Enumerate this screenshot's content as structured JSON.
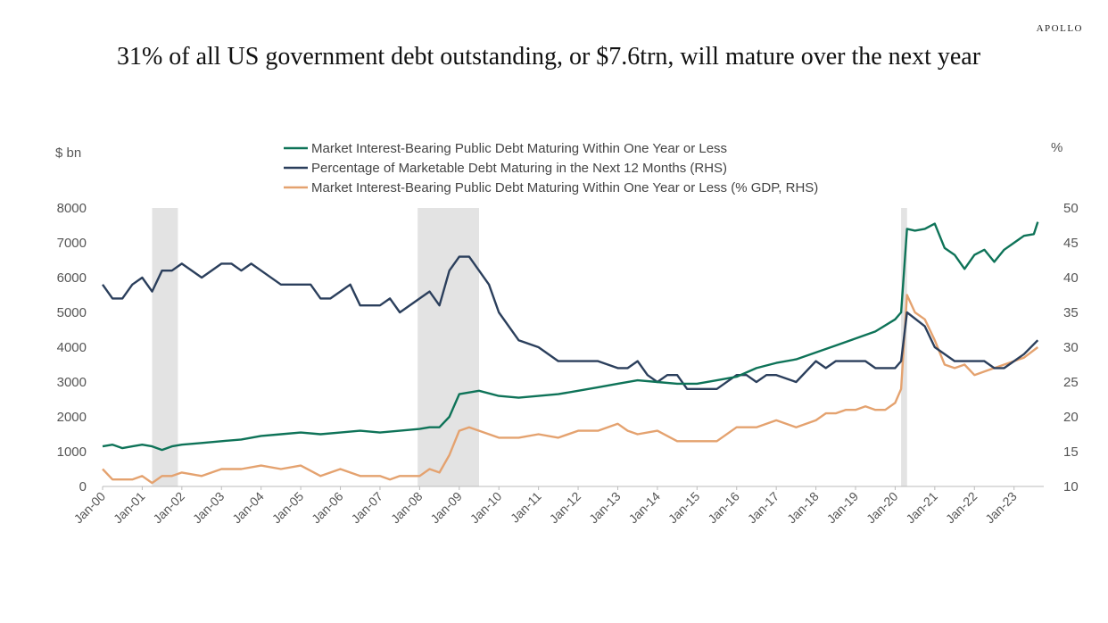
{
  "header": {
    "brand": "APOLLO",
    "title": "31% of all US government debt outstanding, or $7.6trn, will mature over the next year"
  },
  "chart_data": {
    "type": "line",
    "title": "31% of all US government debt outstanding, or $7.6trn, will mature over the next year",
    "left_axis_label": "$ bn",
    "right_axis_label": "%",
    "left_ylim": [
      0,
      8000
    ],
    "left_ticks": [
      0,
      1000,
      2000,
      3000,
      4000,
      5000,
      6000,
      7000,
      8000
    ],
    "right_ylim": [
      10,
      50
    ],
    "right_ticks": [
      10,
      15,
      20,
      25,
      30,
      35,
      40,
      45,
      50
    ],
    "x_ticks": [
      "Jan-00",
      "Jan-01",
      "Jan-02",
      "Jan-03",
      "Jan-04",
      "Jan-05",
      "Jan-06",
      "Jan-07",
      "Jan-08",
      "Jan-09",
      "Jan-10",
      "Jan-11",
      "Jan-12",
      "Jan-13",
      "Jan-14",
      "Jan-15",
      "Jan-16",
      "Jan-17",
      "Jan-18",
      "Jan-19",
      "Jan-20",
      "Jan-21",
      "Jan-22",
      "Jan-23"
    ],
    "x_range": [
      2000.0,
      2023.75
    ],
    "legend_placement": "top-center",
    "grid": false,
    "recessions": [
      [
        2001.25,
        2001.9
      ],
      [
        2007.95,
        2009.5
      ],
      [
        2020.15,
        2020.3
      ]
    ],
    "series": [
      {
        "name": "Market Interest-Bearing Public Debt Maturing Within One Year or Less",
        "axis": "left",
        "color": "#0e7358",
        "x": [
          2000.0,
          2000.25,
          2000.5,
          2000.75,
          2001.0,
          2001.25,
          2001.5,
          2001.75,
          2002.0,
          2002.5,
          2003.0,
          2003.5,
          2004.0,
          2004.5,
          2005.0,
          2005.5,
          2006.0,
          2006.5,
          2007.0,
          2007.5,
          2008.0,
          2008.25,
          2008.5,
          2008.75,
          2009.0,
          2009.5,
          2010.0,
          2010.5,
          2011.0,
          2011.5,
          2012.0,
          2012.5,
          2013.0,
          2013.5,
          2014.0,
          2014.5,
          2015.0,
          2015.5,
          2016.0,
          2016.5,
          2017.0,
          2017.5,
          2018.0,
          2018.5,
          2019.0,
          2019.5,
          2020.0,
          2020.15,
          2020.3,
          2020.5,
          2020.75,
          2021.0,
          2021.25,
          2021.5,
          2021.75,
          2022.0,
          2022.25,
          2022.5,
          2022.75,
          2023.0,
          2023.25,
          2023.5,
          2023.6
        ],
        "values": [
          1150,
          1200,
          1100,
          1150,
          1200,
          1150,
          1050,
          1150,
          1200,
          1250,
          1300,
          1350,
          1450,
          1500,
          1550,
          1500,
          1550,
          1600,
          1550,
          1600,
          1650,
          1700,
          1700,
          2000,
          2650,
          2750,
          2600,
          2550,
          2600,
          2650,
          2750,
          2850,
          2950,
          3050,
          3000,
          2950,
          2950,
          3050,
          3150,
          3400,
          3550,
          3650,
          3850,
          4050,
          4250,
          4450,
          4800,
          5000,
          7400,
          7350,
          7400,
          7550,
          6850,
          6650,
          6250,
          6650,
          6800,
          6450,
          6800,
          7000,
          7200,
          7250,
          7600
        ]
      },
      {
        "name": "Percentage of Marketable Debt Maturing in the Next 12 Months (RHS)",
        "axis": "right",
        "color": "#2b3f5c",
        "x": [
          2000.0,
          2000.25,
          2000.5,
          2000.75,
          2001.0,
          2001.25,
          2001.5,
          2001.75,
          2002.0,
          2002.5,
          2003.0,
          2003.25,
          2003.5,
          2003.75,
          2004.0,
          2004.5,
          2005.0,
          2005.25,
          2005.5,
          2005.75,
          2006.0,
          2006.25,
          2006.5,
          2006.75,
          2007.0,
          2007.25,
          2007.5,
          2008.0,
          2008.25,
          2008.5,
          2008.75,
          2009.0,
          2009.25,
          2009.5,
          2009.75,
          2010.0,
          2010.5,
          2011.0,
          2011.5,
          2012.0,
          2012.5,
          2013.0,
          2013.25,
          2013.5,
          2013.75,
          2014.0,
          2014.25,
          2014.5,
          2014.75,
          2015.0,
          2015.5,
          2016.0,
          2016.25,
          2016.5,
          2016.75,
          2017.0,
          2017.5,
          2018.0,
          2018.25,
          2018.5,
          2018.75,
          2019.0,
          2019.25,
          2019.5,
          2019.75,
          2020.0,
          2020.15,
          2020.3,
          2020.75,
          2021.0,
          2021.5,
          2022.0,
          2022.25,
          2022.5,
          2022.75,
          2023.0,
          2023.25,
          2023.6
        ],
        "values": [
          39,
          37,
          37,
          39,
          40,
          38,
          41,
          41,
          42,
          40,
          42,
          42,
          41,
          42,
          41,
          39,
          39,
          39,
          37,
          37,
          38,
          39,
          36,
          36,
          36,
          37,
          35,
          37,
          38,
          36,
          41,
          43,
          43,
          41,
          39,
          35,
          31,
          30,
          28,
          28,
          28,
          27,
          27,
          28,
          26,
          25,
          26,
          26,
          24,
          24,
          24,
          26,
          26,
          25,
          26,
          26,
          25,
          28,
          27,
          28,
          28,
          28,
          28,
          27,
          27,
          27,
          28,
          35,
          33,
          30,
          28,
          28,
          28,
          27,
          27,
          28,
          29,
          31
        ]
      },
      {
        "name": "Market Interest-Bearing Public Debt Maturing Within One Year or Less (% GDP, RHS)",
        "axis": "right",
        "color": "#e4a26f",
        "x": [
          2000.0,
          2000.25,
          2000.5,
          2000.75,
          2001.0,
          2001.25,
          2001.5,
          2001.75,
          2002.0,
          2002.5,
          2003.0,
          2003.5,
          2004.0,
          2004.5,
          2005.0,
          2005.5,
          2006.0,
          2006.5,
          2007.0,
          2007.25,
          2007.5,
          2008.0,
          2008.25,
          2008.5,
          2008.75,
          2009.0,
          2009.25,
          2009.5,
          2010.0,
          2010.5,
          2011.0,
          2011.5,
          2012.0,
          2012.5,
          2013.0,
          2013.25,
          2013.5,
          2014.0,
          2014.5,
          2015.0,
          2015.5,
          2016.0,
          2016.5,
          2017.0,
          2017.5,
          2018.0,
          2018.25,
          2018.5,
          2018.75,
          2019.0,
          2019.25,
          2019.5,
          2019.75,
          2020.0,
          2020.15,
          2020.3,
          2020.5,
          2020.75,
          2021.0,
          2021.25,
          2021.5,
          2021.75,
          2022.0,
          2022.25,
          2022.5,
          2022.75,
          2023.0,
          2023.25,
          2023.6
        ],
        "values": [
          12.5,
          11,
          11,
          11,
          11.5,
          10.5,
          11.5,
          11.5,
          12,
          11.5,
          12.5,
          12.5,
          13,
          12.5,
          13,
          11.5,
          12.5,
          11.5,
          11.5,
          11,
          11.5,
          11.5,
          12.5,
          12,
          14.5,
          18,
          18.5,
          18,
          17,
          17,
          17.5,
          17,
          18,
          18,
          19,
          18,
          17.5,
          18,
          16.5,
          16.5,
          16.5,
          18.5,
          18.5,
          19.5,
          18.5,
          19.5,
          20.5,
          20.5,
          21,
          21,
          21.5,
          21,
          21,
          22,
          24,
          37.5,
          35,
          34,
          31,
          27.5,
          27,
          27.5,
          26,
          26.5,
          27,
          27.5,
          28,
          28.5,
          30
        ]
      }
    ]
  }
}
